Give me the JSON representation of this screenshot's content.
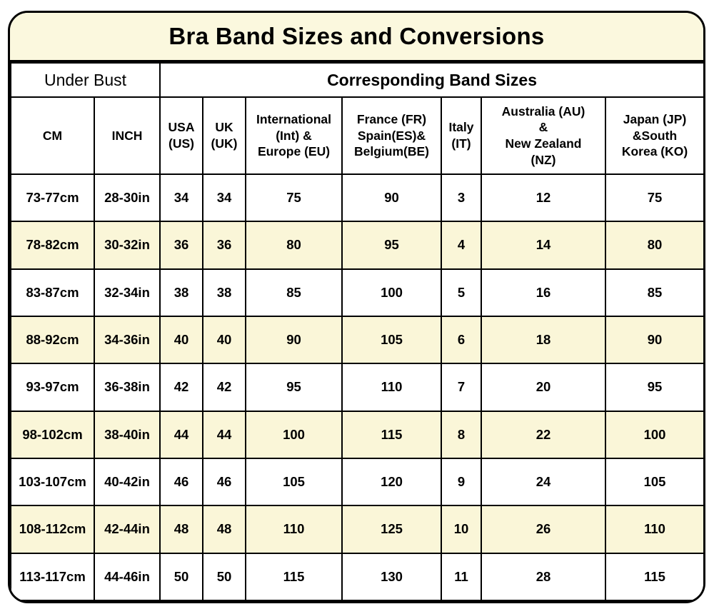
{
  "title": "Bra Band Sizes and Conversions",
  "colors": {
    "title_bg": "#FBF8DE",
    "row_alt_bg": "#FAF6D8",
    "row_bg": "#FFFFFF",
    "border": "#000000",
    "text": "#000000"
  },
  "chart_data": {
    "type": "table",
    "title": "Bra Band Sizes and Conversions",
    "group_headers": [
      "Under Bust",
      "Corresponding Band Sizes"
    ],
    "columns": [
      "CM",
      "INCH",
      "USA\n(US)",
      "UK\n(UK)",
      "International\n(Int) &\nEurope (EU)",
      "France (FR)\nSpain(ES)&\nBelgium(BE)",
      "Italy\n(IT)",
      "Australia (AU)\n&\nNew Zealand\n(NZ)",
      "Japan (JP)\n&South\nKorea (KO)"
    ],
    "rows": [
      [
        "73-77cm",
        "28-30in",
        "34",
        "34",
        "75",
        "90",
        "3",
        "12",
        "75"
      ],
      [
        "78-82cm",
        "30-32in",
        "36",
        "36",
        "80",
        "95",
        "4",
        "14",
        "80"
      ],
      [
        "83-87cm",
        "32-34in",
        "38",
        "38",
        "85",
        "100",
        "5",
        "16",
        "85"
      ],
      [
        "88-92cm",
        "34-36in",
        "40",
        "40",
        "90",
        "105",
        "6",
        "18",
        "90"
      ],
      [
        "93-97cm",
        "36-38in",
        "42",
        "42",
        "95",
        "110",
        "7",
        "20",
        "95"
      ],
      [
        "98-102cm",
        "38-40in",
        "44",
        "44",
        "100",
        "115",
        "8",
        "22",
        "100"
      ],
      [
        "103-107cm",
        "40-42in",
        "46",
        "46",
        "105",
        "120",
        "9",
        "24",
        "105"
      ],
      [
        "108-112cm",
        "42-44in",
        "48",
        "48",
        "110",
        "125",
        "10",
        "26",
        "110"
      ],
      [
        "113-117cm",
        "44-46in",
        "50",
        "50",
        "115",
        "130",
        "11",
        "28",
        "115"
      ]
    ]
  }
}
